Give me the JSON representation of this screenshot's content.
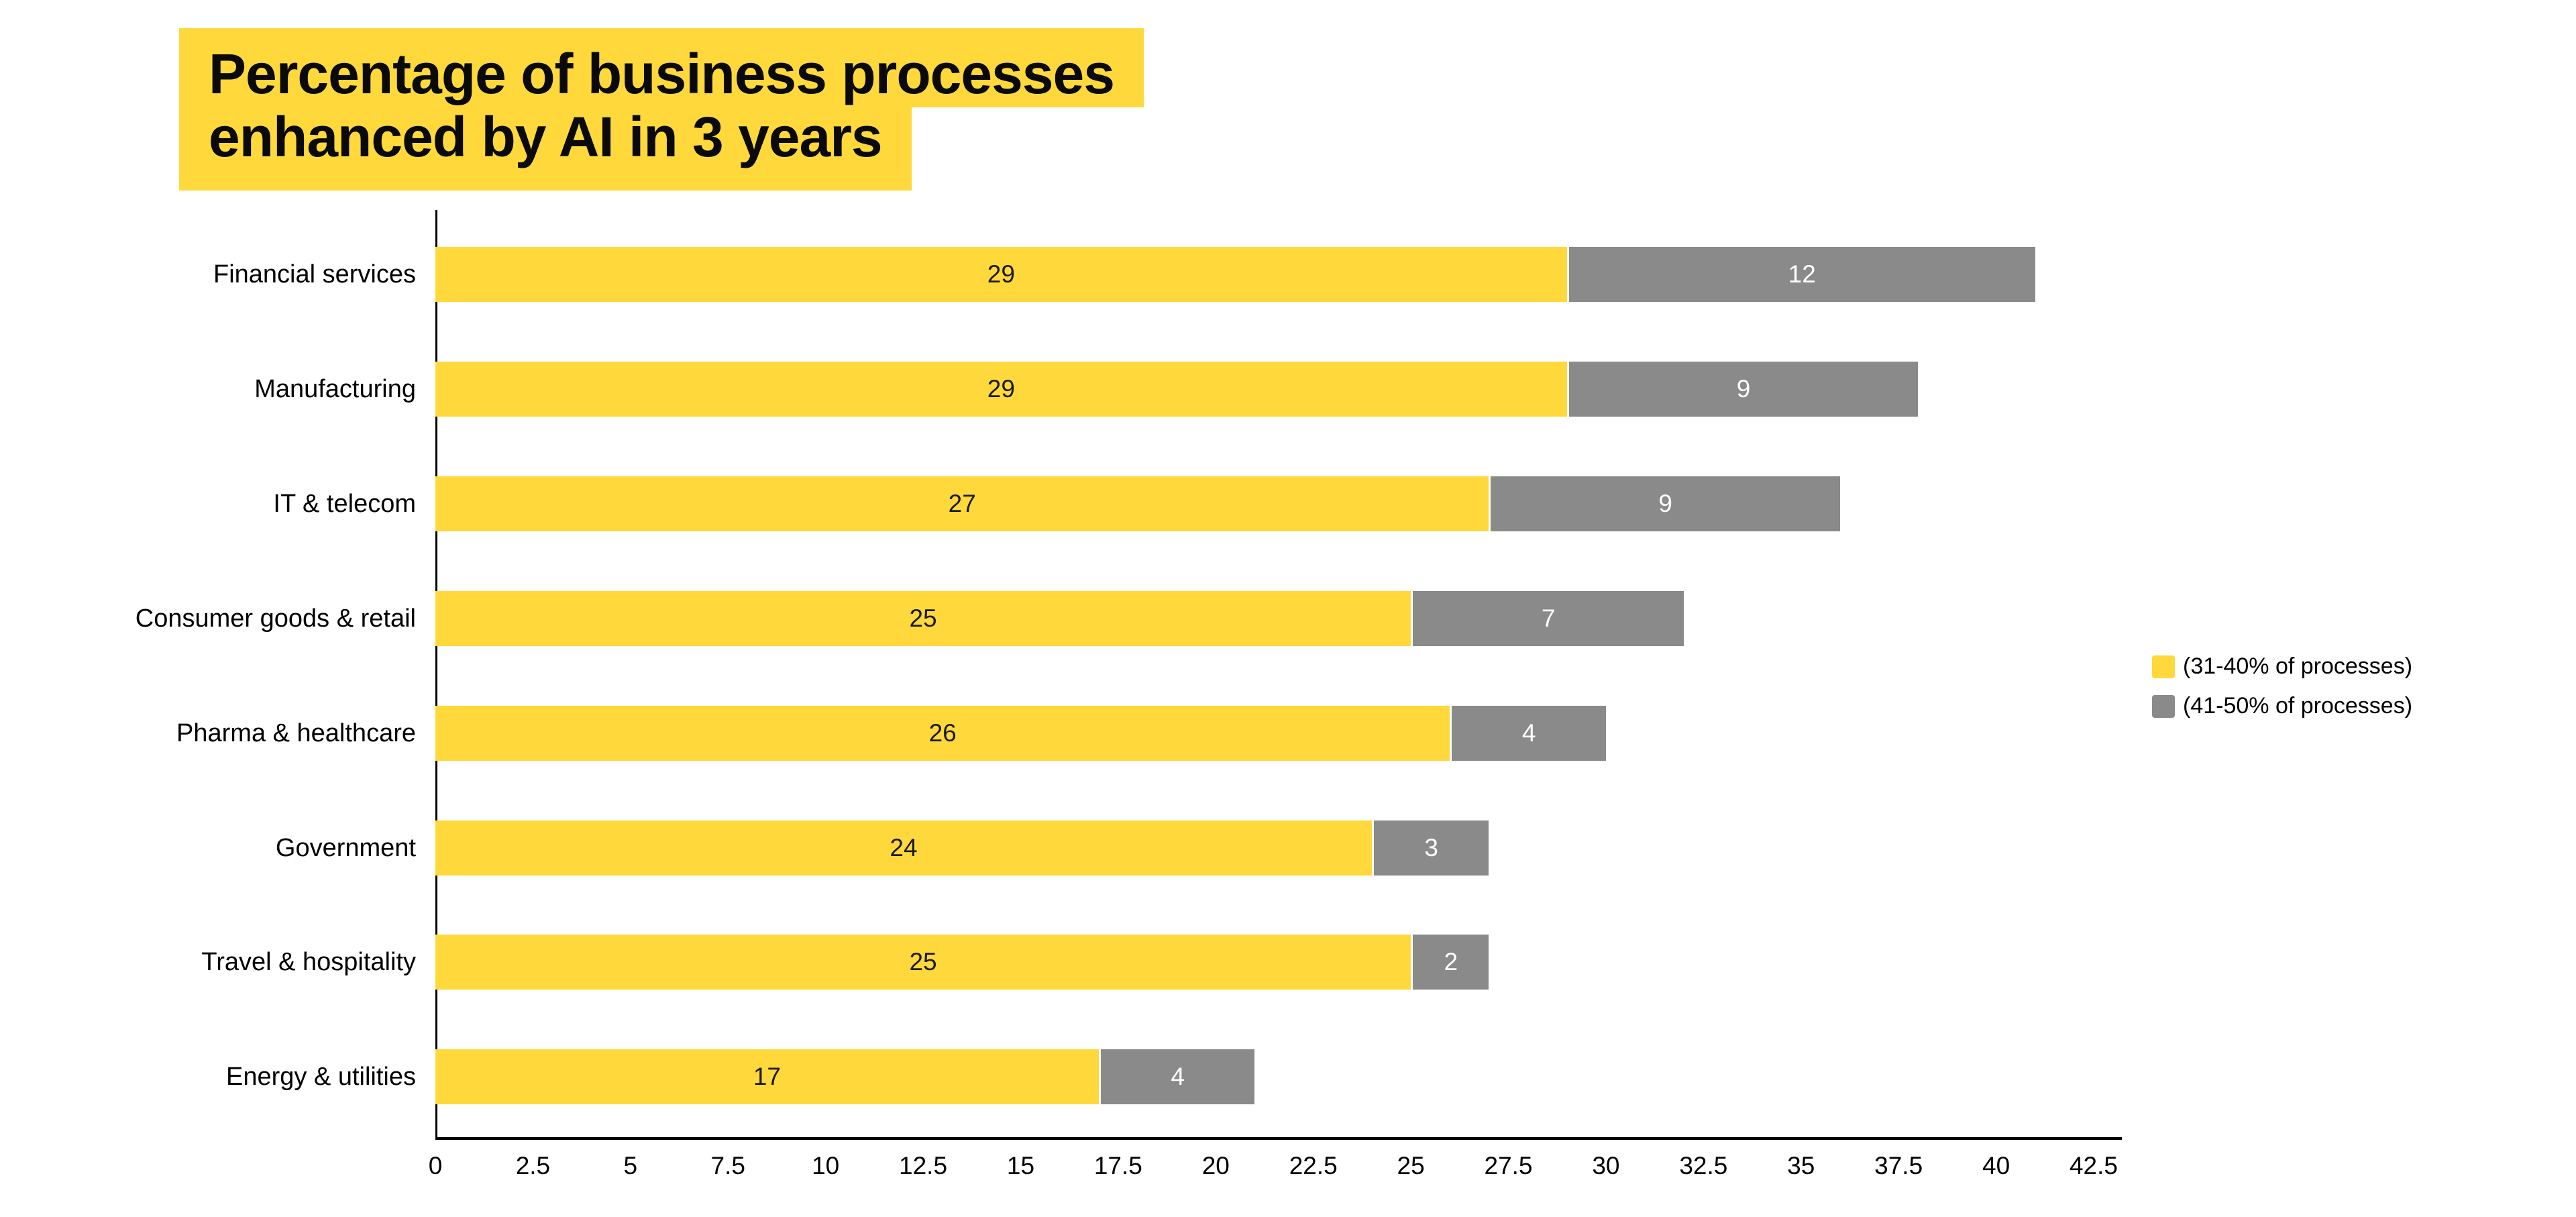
{
  "title": {
    "line1": "Percentage of business processes",
    "line2": "enhanced by AI in 3 years"
  },
  "colors": {
    "yellow": "#ffd83c",
    "gray": "#8a8a8a",
    "axis": "#000000",
    "background": "#ffffff",
    "title_text": "#0a0a0a",
    "value_on_yellow": "#1a1a1a",
    "value_on_gray": "#ffffff"
  },
  "legend": {
    "items": [
      {
        "label": "(31-40% of processes)",
        "color_key": "yellow"
      },
      {
        "label": "(41-50% of processes)",
        "color_key": "gray"
      }
    ]
  },
  "chart_data": {
    "type": "bar",
    "orientation": "horizontal",
    "stacked": true,
    "title": "Percentage of business processes enhanced by AI in 3 years",
    "categories": [
      "Financial services",
      "Manufacturing",
      "IT & telecom",
      "Consumer goods & retail",
      "Pharma & healthcare",
      "Government",
      "Travel & hospitality",
      "Energy & utilities"
    ],
    "series": [
      {
        "name": "(31-40% of processes)",
        "color": "#ffd83c",
        "values": [
          29,
          29,
          27,
          25,
          26,
          24,
          25,
          17
        ]
      },
      {
        "name": "(41-50% of processes)",
        "color": "#8a8a8a",
        "values": [
          12,
          9,
          9,
          7,
          4,
          3,
          2,
          4
        ]
      }
    ],
    "totals": [
      41,
      38,
      36,
      32,
      30,
      27,
      27,
      21
    ],
    "xlabel": "",
    "ylabel": "",
    "xlim": [
      0,
      42.5
    ],
    "x_tick_step": 2.5,
    "x_ticks": [
      "0",
      "2.5",
      "5",
      "7.5",
      "10",
      "12.5",
      "15",
      "17.5",
      "20",
      "22.5",
      "25",
      "27.5",
      "30",
      "32.5",
      "35",
      "37.5",
      "40",
      "42.5"
    ],
    "grid": false,
    "legend_position": "right",
    "value_labels": "inside-center"
  }
}
